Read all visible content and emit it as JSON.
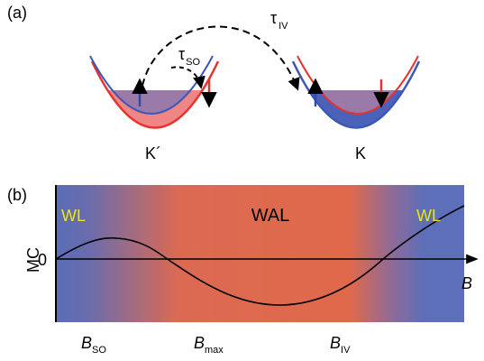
{
  "panel_a": {
    "label": "(a)",
    "tau_iv": {
      "symbol": "τ",
      "sub": "IV"
    },
    "tau_so": {
      "symbol": "τ",
      "sub": "SO"
    },
    "valley_left": "K´",
    "valley_right": "K"
  },
  "panel_b": {
    "label": "(b)",
    "left_region": "WL",
    "center_region": "WAL",
    "right_region": "WL",
    "y_axis_label": "MC",
    "y_zero": "0",
    "x_axis_label": "B",
    "field_labels": [
      {
        "symbol": "B",
        "sub": "SO"
      },
      {
        "symbol": "B",
        "sub": "max"
      },
      {
        "symbol": "B",
        "sub": "IV"
      }
    ]
  }
}
